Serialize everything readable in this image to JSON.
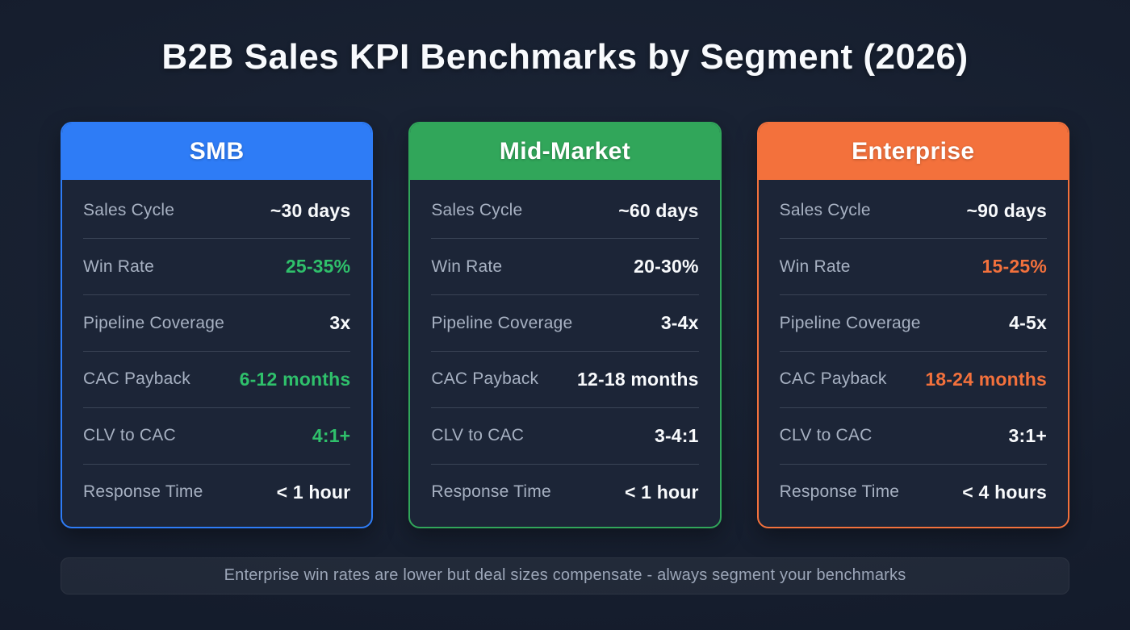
{
  "title": "B2B Sales KPI Benchmarks by Segment (2026)",
  "footnote": "Enterprise win rates are lower but deal sizes compensate - always segment your benchmarks",
  "colors": {
    "background": "#161e2e",
    "card_background": "#1c2537",
    "label_text": "#a7b1c2",
    "value_text": "#f8fafc",
    "smb_accent": "#2e7cf6",
    "midmarket_accent": "#31a65a",
    "enterprise_accent": "#f3713c",
    "green_value": "#2fc06b",
    "orange_value": "#f3713c"
  },
  "cards": [
    {
      "segment": "SMB",
      "accent": "#2e7cf6",
      "rows": [
        {
          "label": "Sales Cycle",
          "value": "~30 days",
          "value_color": "#f8fafc"
        },
        {
          "label": "Win Rate",
          "value": "25-35%",
          "value_color": "#2fc06b"
        },
        {
          "label": "Pipeline Coverage",
          "value": "3x",
          "value_color": "#f8fafc"
        },
        {
          "label": "CAC Payback",
          "value": "6-12 months",
          "value_color": "#2fc06b"
        },
        {
          "label": "CLV to CAC",
          "value": "4:1+",
          "value_color": "#2fc06b"
        },
        {
          "label": "Response Time",
          "value": "< 1 hour",
          "value_color": "#f8fafc"
        }
      ]
    },
    {
      "segment": "Mid-Market",
      "accent": "#31a65a",
      "rows": [
        {
          "label": "Sales Cycle",
          "value": "~60 days",
          "value_color": "#f8fafc"
        },
        {
          "label": "Win Rate",
          "value": "20-30%",
          "value_color": "#f8fafc"
        },
        {
          "label": "Pipeline Coverage",
          "value": "3-4x",
          "value_color": "#f8fafc"
        },
        {
          "label": "CAC Payback",
          "value": "12-18 months",
          "value_color": "#f8fafc"
        },
        {
          "label": "CLV to CAC",
          "value": "3-4:1",
          "value_color": "#f8fafc"
        },
        {
          "label": "Response Time",
          "value": "< 1 hour",
          "value_color": "#f8fafc"
        }
      ]
    },
    {
      "segment": "Enterprise",
      "accent": "#f3713c",
      "rows": [
        {
          "label": "Sales Cycle",
          "value": "~90 days",
          "value_color": "#f8fafc"
        },
        {
          "label": "Win Rate",
          "value": "15-25%",
          "value_color": "#f3713c"
        },
        {
          "label": "Pipeline Coverage",
          "value": "4-5x",
          "value_color": "#f8fafc"
        },
        {
          "label": "CAC Payback",
          "value": "18-24 months",
          "value_color": "#f3713c"
        },
        {
          "label": "CLV to CAC",
          "value": "3:1+",
          "value_color": "#f8fafc"
        },
        {
          "label": "Response Time",
          "value": "< 4 hours",
          "value_color": "#f8fafc"
        }
      ]
    }
  ],
  "chart_data": {
    "type": "table",
    "title": "B2B Sales KPI Benchmarks by Segment (2026)",
    "columns": [
      "Metric",
      "SMB",
      "Mid-Market",
      "Enterprise"
    ],
    "rows": [
      [
        "Sales Cycle",
        "~30 days",
        "~60 days",
        "~90 days"
      ],
      [
        "Win Rate",
        "25-35%",
        "20-30%",
        "15-25%"
      ],
      [
        "Pipeline Coverage",
        "3x",
        "3-4x",
        "4-5x"
      ],
      [
        "CAC Payback",
        "6-12 months",
        "12-18 months",
        "18-24 months"
      ],
      [
        "CLV to CAC",
        "4:1+",
        "3-4:1",
        "3:1+"
      ],
      [
        "Response Time",
        "< 1 hour",
        "< 1 hour",
        "< 4 hours"
      ]
    ],
    "annotation": "Enterprise win rates are lower but deal sizes compensate - always segment your benchmarks",
    "legend_position": "none",
    "grid": false
  }
}
